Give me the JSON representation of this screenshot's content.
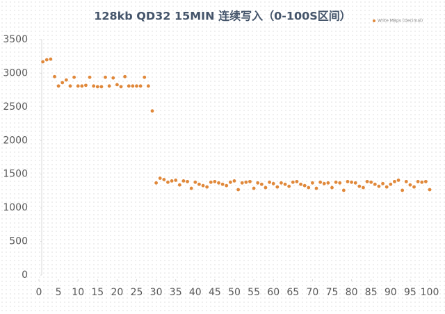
{
  "chart_data": {
    "type": "scatter",
    "title": "128kb QD32 15MIN 连续写入（0-100S区间）",
    "series": [
      {
        "name": "Write MBps (Decimal)",
        "color": "#e0883a",
        "x": [
          1,
          2,
          3,
          4,
          5,
          6,
          7,
          8,
          9,
          10,
          11,
          12,
          13,
          14,
          15,
          16,
          17,
          18,
          19,
          20,
          21,
          22,
          23,
          24,
          25,
          26,
          27,
          28,
          29,
          30,
          31,
          32,
          33,
          34,
          35,
          36,
          37,
          38,
          39,
          40,
          41,
          42,
          43,
          44,
          45,
          46,
          47,
          48,
          49,
          50,
          51,
          52,
          53,
          54,
          55,
          56,
          57,
          58,
          59,
          60,
          61,
          62,
          63,
          64,
          65,
          66,
          67,
          68,
          69,
          70,
          71,
          72,
          73,
          74,
          75,
          76,
          77,
          78,
          79,
          80,
          81,
          82,
          83,
          84,
          85,
          86,
          87,
          88,
          89,
          90,
          91,
          92,
          93,
          94,
          95,
          96,
          97,
          98,
          99,
          100
        ],
        "values": [
          3170,
          3200,
          3210,
          2950,
          2810,
          2860,
          2900,
          2810,
          2940,
          2810,
          2810,
          2820,
          2940,
          2810,
          2800,
          2800,
          2940,
          2810,
          2930,
          2830,
          2800,
          2950,
          2810,
          2810,
          2810,
          2810,
          2940,
          2810,
          2440,
          1370,
          1440,
          1420,
          1380,
          1400,
          1410,
          1340,
          1400,
          1390,
          1290,
          1380,
          1350,
          1330,
          1310,
          1380,
          1390,
          1370,
          1350,
          1330,
          1380,
          1400,
          1270,
          1370,
          1380,
          1390,
          1290,
          1370,
          1350,
          1300,
          1380,
          1360,
          1310,
          1370,
          1350,
          1320,
          1380,
          1390,
          1350,
          1330,
          1300,
          1370,
          1290,
          1380,
          1360,
          1370,
          1300,
          1380,
          1370,
          1260,
          1390,
          1380,
          1370,
          1320,
          1300,
          1390,
          1380,
          1350,
          1320,
          1360,
          1310,
          1350,
          1390,
          1410,
          1260,
          1390,
          1340,
          1310,
          1390,
          1380,
          1390,
          1270
        ]
      }
    ],
    "xlim": [
      0,
      100
    ],
    "xticks": [
      0,
      5,
      10,
      15,
      20,
      25,
      30,
      35,
      40,
      45,
      50,
      55,
      60,
      65,
      70,
      75,
      80,
      85,
      90,
      95,
      100
    ],
    "ylim": [
      0,
      3500
    ],
    "yticks": [
      0,
      500,
      1000,
      1500,
      2000,
      2500,
      3000,
      3500
    ],
    "legend": "top-right"
  }
}
